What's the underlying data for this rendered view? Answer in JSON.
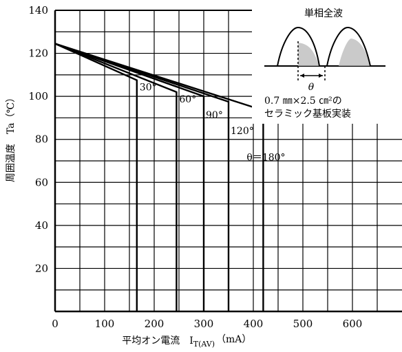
{
  "chart_data": {
    "type": "line",
    "title": "",
    "xlabel": "平均オン電流　I",
    "xlabel_sub": "T(AV)",
    "xlabel_unit": "（mA）",
    "ylabel": "周囲温度　Ta（℃）",
    "xlim": [
      0,
      700
    ],
    "ylim": [
      0,
      140
    ],
    "x_ticks": [
      0,
      100,
      200,
      300,
      400,
      500,
      600
    ],
    "y_ticks": [
      20,
      40,
      60,
      80,
      100,
      120,
      140
    ],
    "grid": true,
    "series": [
      {
        "name": "30°",
        "points": [
          [
            0,
            124.5
          ],
          [
            165,
            107.5
          ],
          [
            165,
            0
          ]
        ]
      },
      {
        "name": "60°",
        "points": [
          [
            0,
            124.5
          ],
          [
            245,
            102
          ],
          [
            245,
            0
          ]
        ]
      },
      {
        "name": "90°",
        "points": [
          [
            0,
            124.5
          ],
          [
            300,
            100
          ],
          [
            300,
            0
          ]
        ]
      },
      {
        "name": "120°",
        "points": [
          [
            0,
            124.5
          ],
          [
            350,
            97.5
          ],
          [
            350,
            0
          ]
        ]
      },
      {
        "name": "θ＝180°",
        "points": [
          [
            0,
            124.5
          ],
          [
            420,
            93.5
          ],
          [
            420,
            0
          ]
        ]
      }
    ],
    "inset": {
      "title": "単相全波",
      "theta_label": "θ",
      "note_line1": "0.7 ㎜×2.5 ㎝²の",
      "note_line2": "セラミック基板実装"
    }
  }
}
